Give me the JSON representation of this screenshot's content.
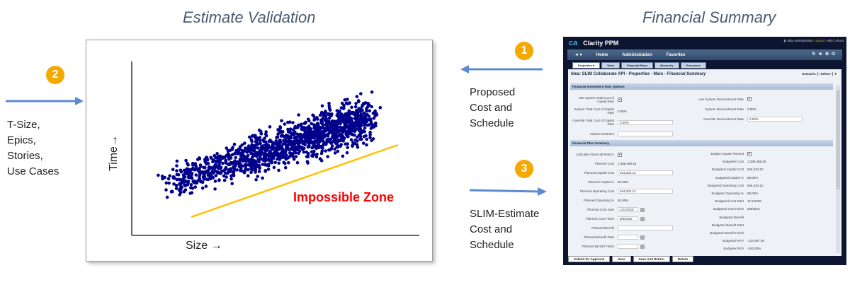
{
  "left": {
    "title": "Estimate Validation",
    "inputs": [
      "T-Size,",
      "Epics,",
      "Stories,",
      "Use Cases"
    ],
    "badge": "2",
    "chart": {
      "ylabel": "Time→",
      "xlabel": "Size →",
      "zone": "Impossible Zone",
      "point_color": "#00008b",
      "line_color": "#ffc000",
      "zone_color": "#ff0000"
    }
  },
  "middle": {
    "badge1": "1",
    "text1": [
      "Proposed",
      "Cost and",
      "Schedule"
    ],
    "badge3": "3",
    "text3": [
      "SLIM-Estimate",
      "Cost and",
      "Schedule"
    ]
  },
  "right": {
    "title": "Financial Summary",
    "app": {
      "logo": "ca",
      "name": "Clarity PPM",
      "user": "Niku Administrator",
      "logout": "Logout",
      "help": "Help",
      "about": "About",
      "nav": [
        "◄ ▾",
        "Home",
        "Administration",
        "Favorites"
      ],
      "tabs": [
        "Properties ▾",
        "Team",
        "Financial Plans",
        "Hierarchy",
        "Processes"
      ],
      "page_title": "Idea: SLIM Collaborate API - ",
      "page_title_2": "Properties",
      "page_title_3": " - Main - ",
      "page_title_4": "Financial Summary",
      "scenario": "Scenario: [--Select--]  ▼",
      "section1": "Financial Investment Rate Options",
      "s1_left": [
        {
          "label": "Use System Total Cost of Capital Rate",
          "type": "check"
        },
        {
          "label": "System Total Cost of Capital Rate",
          "value": "0.00%"
        },
        {
          "label": "Override Total Cost of Capital Rate",
          "value": "0.00%",
          "type": "input"
        },
        {
          "label": "Initial Investment",
          "value": "",
          "type": "input"
        }
      ],
      "s1_right": [
        {
          "label": "Use System Reinvestment Rate",
          "type": "check"
        },
        {
          "label": "System Reinvestment Rate",
          "value": "0.00%"
        },
        {
          "label": "Override Reinvestment Rate",
          "value": "0.00%",
          "type": "input"
        }
      ],
      "section2": "Financial Plan Summary",
      "s2_left": [
        {
          "label": "Calculate Financial Metrics",
          "type": "check"
        },
        {
          "label": "Planned Cost",
          "value": "1,288,468.25"
        },
        {
          "label": "Planned Capital Cost",
          "value": "644,234.12",
          "type": "input"
        },
        {
          "label": "Planned Capital %",
          "value": "50.00%"
        },
        {
          "label": "Planned Operating Cost",
          "value": "644,234.12",
          "type": "input"
        },
        {
          "label": "Planned Operating %",
          "value": "50.00%"
        },
        {
          "label": "Planned Cost Start",
          "value": "11/1/2015",
          "type": "date"
        },
        {
          "label": "Planned Cost Finish",
          "value": "5/6/2016",
          "type": "date"
        },
        {
          "label": "Planned Benefit",
          "value": "",
          "type": "input"
        },
        {
          "label": "Planned Benefit Start",
          "value": "",
          "type": "date"
        },
        {
          "label": "Planned Benefit Finish",
          "value": "",
          "type": "date"
        }
      ],
      "s2_right": [
        {
          "label": "Budget equals Planned",
          "type": "check"
        },
        {
          "label": "Budgeted Cost",
          "value": "1,288,468.25"
        },
        {
          "label": "Budgeted Capital Cost",
          "value": "644,234.12"
        },
        {
          "label": "Budgeted Capital %",
          "value": "50.00%"
        },
        {
          "label": "Budgeted Operating Cost",
          "value": "644,234.12"
        },
        {
          "label": "Budgeted Operating %",
          "value": "50.00%"
        },
        {
          "label": "Budgeted Cost Start",
          "value": "11/1/2015"
        },
        {
          "label": "Budgeted Cost Finish",
          "value": "5/6/2016"
        },
        {
          "label": "Budgeted Benefit",
          "value": ""
        },
        {
          "label": "Budgeted Benefit Start",
          "value": ""
        },
        {
          "label": "Budgeted Benefit Finish",
          "value": ""
        },
        {
          "label": "Budgeted NPV",
          "value": "-123,457.00"
        },
        {
          "label": "Budgeted ROI",
          "value": "-100.00%"
        }
      ],
      "buttons": [
        "Submit for Approval",
        "Save",
        "Save And Return",
        "Return"
      ]
    }
  }
}
